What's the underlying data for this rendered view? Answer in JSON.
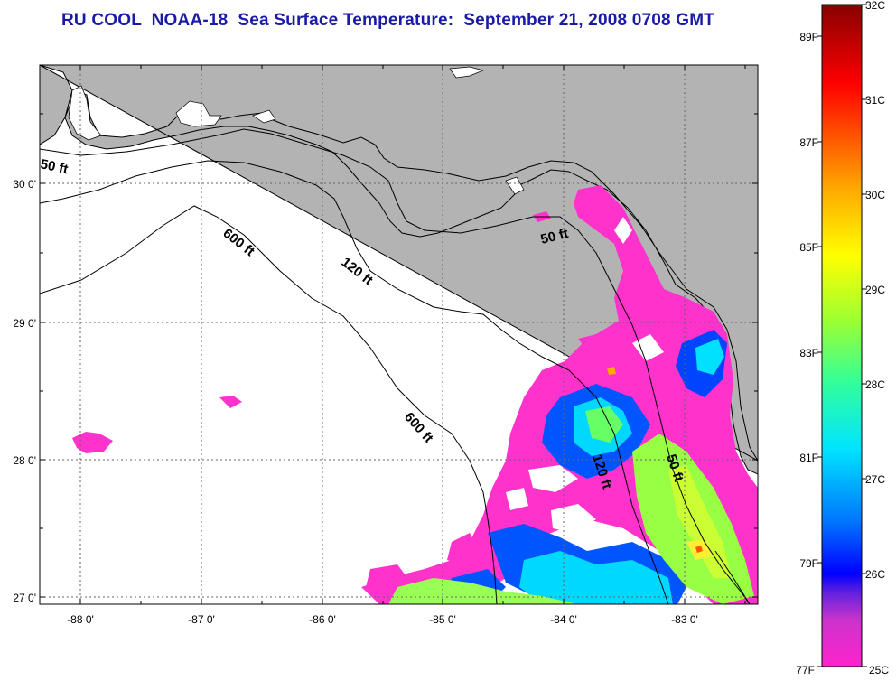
{
  "title": "RU COOL  NOAA-18  Sea Surface Temperature:  September 21, 2008 0708 GMT",
  "map": {
    "longitude_ticks": [
      "-88 0'",
      "-87 0'",
      "-86 0'",
      "-85 0'",
      "-84 0'",
      "-83 0'"
    ],
    "latitude_ticks": [
      "30 0'",
      "29 0'",
      "28 0'",
      "27 0'"
    ],
    "lon_range": [
      -88.3,
      -82.4
    ],
    "lat_range": [
      27.0,
      30.95
    ],
    "land_color": "#b3b3b3",
    "ocean_no_data_color": "#ffffff",
    "depth_contours": [
      {
        "label": "50 ft"
      },
      {
        "label": "120 ft"
      },
      {
        "label": "600 ft"
      }
    ]
  },
  "colorbar": {
    "celsius_labels": [
      "32C",
      "31C",
      "30C",
      "29C",
      "28C",
      "27C",
      "26C",
      "25C"
    ],
    "fahrenheit_labels": [
      "89F",
      "87F",
      "85F",
      "83F",
      "81F",
      "79F",
      "77F"
    ],
    "celsius_range": [
      25,
      32
    ],
    "colors": [
      "#ff00cc",
      "#cc33cc",
      "#8833cc",
      "#0000ff",
      "#00aaff",
      "#00ffff",
      "#33ff99",
      "#99ff33",
      "#ffff00",
      "#ffaa00",
      "#ff5500",
      "#ff0000",
      "#990000"
    ]
  }
}
